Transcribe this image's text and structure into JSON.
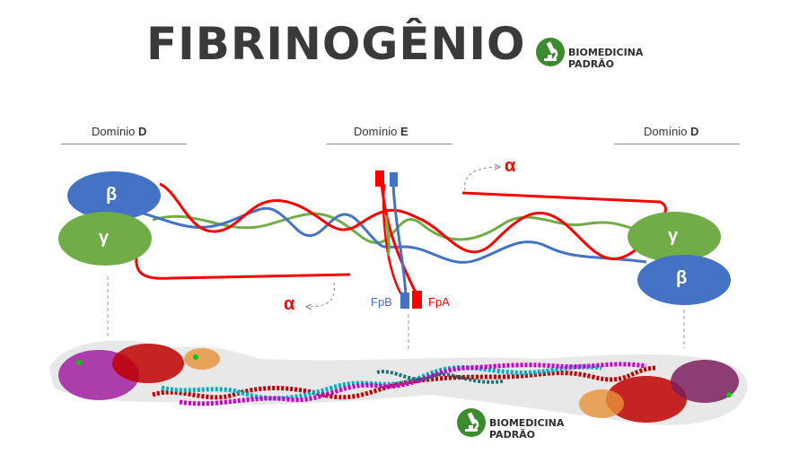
{
  "title": "FIBRINOGÊNIO",
  "brand": {
    "name": "BIOMEDICINA PADRÃO",
    "logo_icon": "microscope-icon"
  },
  "domains": {
    "left": {
      "prefix": "Domínio ",
      "letter": "D"
    },
    "center": {
      "prefix": "Domínio ",
      "letter": "E"
    },
    "right": {
      "prefix": "Domínio ",
      "letter": "D"
    }
  },
  "chains": {
    "beta": {
      "symbol": "β",
      "color": "#4472c4"
    },
    "gamma": {
      "symbol": "γ",
      "color": "#70ad47"
    },
    "alpha": {
      "symbol": "α",
      "color": "#ff0000"
    }
  },
  "fibrinopeptides": {
    "fpb": "FpB",
    "fpa": "FpA"
  }
}
